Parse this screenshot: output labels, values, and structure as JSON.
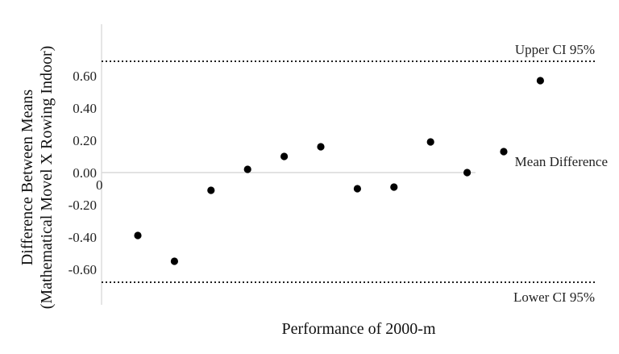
{
  "chart_data": {
    "type": "scatter",
    "title": "",
    "xlabel": "Performance of  2000-m",
    "ylabel_line1": "Difference Between Means",
    "ylabel_line2": "(Mathematical Movel X Rowing Indoor)",
    "x_tick_labels": [
      "0"
    ],
    "y_ticks": [
      0.6,
      0.4,
      0.2,
      0.0,
      -0.2,
      -0.4,
      -0.6
    ],
    "y_tick_labels": [
      "0.60",
      "0.40",
      "0.20",
      "0.00",
      "-0.20",
      "-0.40",
      "-0.60"
    ],
    "ylim": [
      -0.72,
      0.72
    ],
    "grid": false,
    "reference_lines": [
      {
        "label": "Upper CI 95%",
        "y": 0.69,
        "style": "dotted"
      },
      {
        "label": "Mean Difference",
        "y": 0.0,
        "style": "solid-light"
      },
      {
        "label": "Lower CI 95%",
        "y": -0.68,
        "style": "dotted"
      }
    ],
    "series": [
      {
        "x": [
          1,
          2,
          3,
          4,
          5,
          6,
          7,
          8,
          9,
          10,
          11,
          12
        ],
        "y": [
          -0.39,
          -0.55,
          -0.11,
          0.02,
          0.1,
          0.16,
          -0.1,
          -0.09,
          0.19,
          0.0,
          0.13,
          0.57
        ]
      }
    ],
    "colors": {
      "points": "#000000",
      "mean_line": "#d9d9d9",
      "ci_line": "#222222",
      "axis": "#dddddd"
    }
  }
}
